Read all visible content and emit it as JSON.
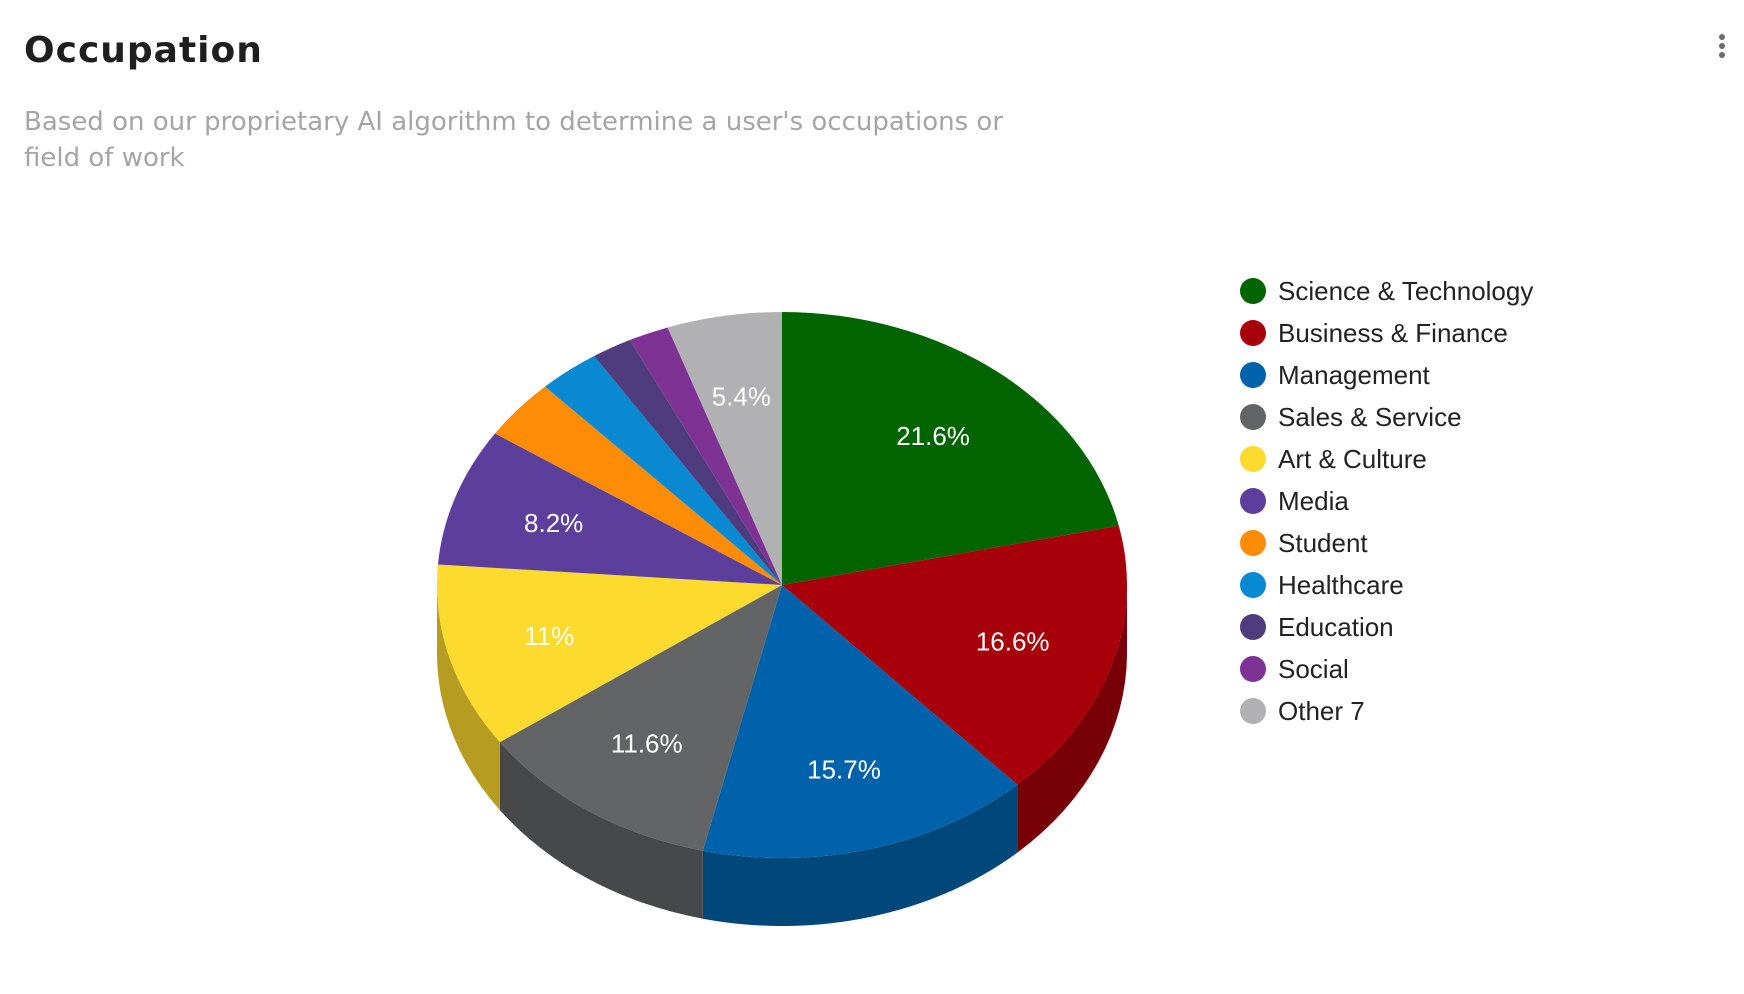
{
  "header": {
    "title": "Occupation",
    "subtitle": "Based on our proprietary AI algorithm to determine a user's occupations or field of work",
    "menu_icon": "more-vertical-icon"
  },
  "chart_data": {
    "type": "pie",
    "style": "3d",
    "legend_position": "right",
    "start_angle_deg": 0,
    "direction": "clockwise",
    "slices": [
      {
        "label": "Science & Technology",
        "value": 21.6,
        "display": "21.6%",
        "color": "#006400",
        "show_label": true
      },
      {
        "label": "Business & Finance",
        "value": 16.6,
        "display": "16.6%",
        "color": "#A7000A",
        "show_label": true
      },
      {
        "label": "Management",
        "value": 15.7,
        "display": "15.7%",
        "color": "#0062AA",
        "show_label": true
      },
      {
        "label": "Sales & Service",
        "value": 11.6,
        "display": "11.6%",
        "color": "#636466",
        "show_label": true
      },
      {
        "label": "Art & Culture",
        "value": 11,
        "display": "11%",
        "color": "#FDDA2E",
        "show_label": true
      },
      {
        "label": "Media",
        "value": 8.2,
        "display": "8.2%",
        "color": "#5C3F9C",
        "show_label": true
      },
      {
        "label": "Student",
        "value": 3.6,
        "display": "",
        "color": "#FF8C05",
        "show_label": false
      },
      {
        "label": "Healthcare",
        "value": 2.9,
        "display": "",
        "color": "#0889D2",
        "show_label": false
      },
      {
        "label": "Education",
        "value": 1.9,
        "display": "",
        "color": "#4F3C7E",
        "show_label": false
      },
      {
        "label": "Social",
        "value": 1.9,
        "display": "",
        "color": "#7E3294",
        "show_label": false
      },
      {
        "label": "Other 7",
        "value": 5.4,
        "display": "5.4%",
        "color": "#B1B1B3",
        "show_label": true
      }
    ]
  }
}
